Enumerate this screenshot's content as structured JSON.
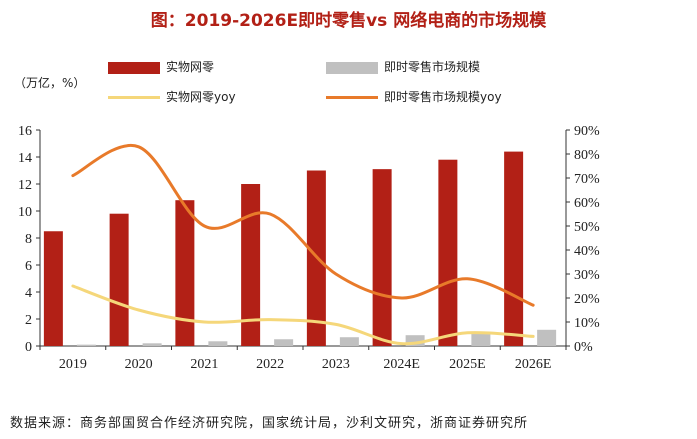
{
  "chart_data": {
    "type": "bar",
    "title": "图：2019-2026E即时零售vs 网络电商的市场规模",
    "unit_label": "（万亿，%）",
    "categories": [
      "2019",
      "2020",
      "2021",
      "2022",
      "2023",
      "2024E",
      "2025E",
      "2026E"
    ],
    "series": [
      {
        "name": "实物网零",
        "type": "bar",
        "axis": "left",
        "color": "#b22016",
        "values": [
          8.5,
          9.8,
          10.8,
          12.0,
          13.0,
          13.1,
          13.8,
          14.4
        ]
      },
      {
        "name": "即时零售市场规模",
        "type": "bar",
        "axis": "left",
        "color": "#c0c0c0",
        "values": [
          0.1,
          0.2,
          0.35,
          0.5,
          0.65,
          0.8,
          1.0,
          1.2
        ]
      },
      {
        "name": "实物网零yoy",
        "type": "line",
        "axis": "right",
        "color": "#f5d77a",
        "values": [
          25,
          15,
          10,
          11,
          9,
          1,
          5.5,
          4
        ]
      },
      {
        "name": "即时零售市场规模yoy",
        "type": "line",
        "axis": "right",
        "color": "#e87a2a",
        "values": [
          71,
          83,
          50,
          55,
          30,
          20,
          28,
          17
        ]
      }
    ],
    "left_axis": {
      "min": 0,
      "max": 16,
      "ticks": [
        "0",
        "2",
        "4",
        "6",
        "8",
        "10",
        "12",
        "14",
        "16"
      ]
    },
    "right_axis": {
      "min": 0,
      "max": 90,
      "ticks": [
        "0%",
        "10%",
        "20%",
        "30%",
        "40%",
        "50%",
        "60%",
        "70%",
        "80%",
        "90%"
      ]
    }
  },
  "legend": {
    "bar1": "实物网零",
    "bar2": "即时零售市场规模",
    "line1": "实物网零yoy",
    "line2": "即时零售市场规模yoy"
  },
  "source": "数据来源：商务部国贸合作经济研究院，国家统计局，沙利文研究，浙商证券研究所"
}
